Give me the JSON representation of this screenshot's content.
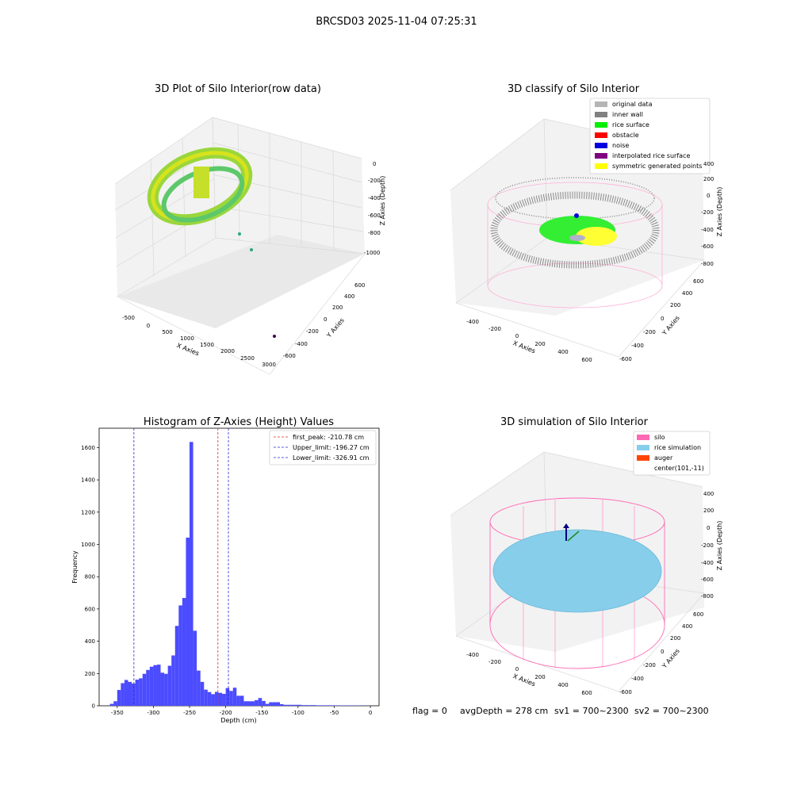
{
  "figure": {
    "suptitle": "BRCSD03 2025-11-04 07:25:31"
  },
  "status_line": {
    "flag": "flag = 0",
    "avg_depth": "avgDepth = 278 cm",
    "sv1": "sv1 = 700~2300",
    "sv2": "sv2 = 700~2300"
  },
  "colors": {
    "hist_bar": "#4b4bff",
    "first_peak": "#e03020",
    "limits": "#2a2ad0",
    "original_data": "#b5b5b5",
    "inner_wall": "#808080",
    "rice_surface": "#00f000",
    "obstacle": "#ff0000",
    "noise": "#0000e0",
    "interpolated_rice_surface": "#800080",
    "symmetric_generated_points": "#ffff00",
    "silo": "#ff69b4",
    "rice_simulation": "#87ceeb",
    "auger": "#ff4500"
  },
  "chart_data": [
    {
      "type": "scatter3d",
      "title": "3D Plot of Silo Interior(row data)",
      "xlabel": "X Axies",
      "ylabel": "Y Axies",
      "zlabel": "Z Axies (Depth)",
      "x_ticks": [
        "-500",
        "0",
        "500",
        "1000",
        "1500",
        "2000",
        "2500",
        "3000"
      ],
      "y_ticks": [
        "-600",
        "-400",
        "-200",
        "0",
        "200",
        "400",
        "600"
      ],
      "z_ticks": [
        "0",
        "-200",
        "-400",
        "-600",
        "-800",
        "-1000"
      ]
    },
    {
      "type": "scatter3d",
      "title": "3D classify of Silo Interior",
      "xlabel": "X Axies",
      "ylabel": "Y Axies",
      "zlabel": "Z Axies (Depth)",
      "x_ticks": [
        "-400",
        "-200",
        "0",
        "200",
        "400",
        "600"
      ],
      "y_ticks": [
        "-600",
        "-400",
        "-200",
        "0",
        "200",
        "400",
        "600"
      ],
      "z_ticks": [
        "200",
        "0",
        "-200",
        "-400",
        "-600",
        "-800"
      ],
      "z_top_tick": "400",
      "legend": [
        "original data",
        "inner wall",
        "rice surface",
        "obstacle",
        "noise",
        "interpolated rice surface",
        "symmetric generated points"
      ],
      "legend_position": "top-right"
    },
    {
      "type": "histogram",
      "title": "Histogram of Z-Axies (Height) Values",
      "xlabel": "Depth (cm)",
      "ylabel": "Frequency",
      "xlim": [
        -375,
        12
      ],
      "ylim": [
        0,
        1720
      ],
      "x_ticks": [
        -350,
        -300,
        -250,
        -200,
        -150,
        -100,
        -50,
        0
      ],
      "y_ticks": [
        0,
        200,
        400,
        600,
        800,
        1000,
        1200,
        1400,
        1600
      ],
      "bins": [
        [
          -360,
          -355,
          12
        ],
        [
          -355,
          -350,
          28
        ],
        [
          -350,
          -345,
          98
        ],
        [
          -345,
          -340,
          140
        ],
        [
          -340,
          -335,
          160
        ],
        [
          -335,
          -330,
          148
        ],
        [
          -330,
          -325,
          138
        ],
        [
          -325,
          -320,
          162
        ],
        [
          -320,
          -315,
          170
        ],
        [
          -315,
          -310,
          198
        ],
        [
          -310,
          -305,
          222
        ],
        [
          -305,
          -300,
          242
        ],
        [
          -300,
          -295,
          252
        ],
        [
          -295,
          -290,
          255
        ],
        [
          -290,
          -285,
          205
        ],
        [
          -285,
          -280,
          198
        ],
        [
          -280,
          -275,
          248
        ],
        [
          -275,
          -270,
          312
        ],
        [
          -270,
          -265,
          495
        ],
        [
          -265,
          -260,
          622
        ],
        [
          -260,
          -255,
          668
        ],
        [
          -255,
          -250,
          1042
        ],
        [
          -250,
          -245,
          1635
        ],
        [
          -245,
          -240,
          465
        ],
        [
          -240,
          -235,
          218
        ],
        [
          -235,
          -230,
          148
        ],
        [
          -230,
          -225,
          100
        ],
        [
          -225,
          -220,
          85
        ],
        [
          -220,
          -215,
          72
        ],
        [
          -215,
          -210,
          86
        ],
        [
          -210,
          -205,
          80
        ],
        [
          -205,
          -200,
          74
        ],
        [
          -200,
          -195,
          110
        ],
        [
          -195,
          -190,
          92
        ],
        [
          -190,
          -185,
          112
        ],
        [
          -185,
          -180,
          62
        ],
        [
          -180,
          -175,
          62
        ],
        [
          -175,
          -170,
          28
        ],
        [
          -170,
          -165,
          28
        ],
        [
          -165,
          -160,
          28
        ],
        [
          -160,
          -155,
          35
        ],
        [
          -155,
          -150,
          48
        ],
        [
          -150,
          -145,
          30
        ],
        [
          -145,
          -140,
          12
        ],
        [
          -140,
          -135,
          22
        ],
        [
          -135,
          -130,
          22
        ],
        [
          -130,
          -125,
          22
        ],
        [
          -125,
          -120,
          10
        ],
        [
          -120,
          -115,
          6
        ],
        [
          -115,
          -110,
          6
        ],
        [
          -110,
          -105,
          6
        ],
        [
          -105,
          -100,
          6
        ],
        [
          -100,
          -95,
          6
        ],
        [
          -95,
          -90,
          4
        ],
        [
          -90,
          -85,
          4
        ],
        [
          -85,
          -80,
          4
        ],
        [
          -80,
          -75,
          4
        ],
        [
          -75,
          -70,
          3
        ],
        [
          -70,
          -65,
          3
        ],
        [
          -65,
          -60,
          3
        ],
        [
          -60,
          -55,
          3
        ],
        [
          -55,
          -50,
          3
        ],
        [
          -50,
          -45,
          2
        ],
        [
          -45,
          -40,
          2
        ],
        [
          -40,
          -35,
          2
        ],
        [
          -35,
          -30,
          2
        ],
        [
          -30,
          -25,
          2
        ],
        [
          -25,
          -20,
          2
        ],
        [
          -20,
          -15,
          2
        ],
        [
          -15,
          -10,
          1
        ],
        [
          -10,
          -5,
          1
        ],
        [
          -5,
          0,
          1
        ]
      ],
      "vlines": [
        {
          "label": "first_peak: -210.78 cm",
          "x": -210.78,
          "color": "#e03020"
        },
        {
          "label": "Upper_limit: -196.27 cm",
          "x": -196.27,
          "color": "#2a2ad0"
        },
        {
          "label": "Lower_limit: -326.91 cm",
          "x": -326.91,
          "color": "#2a2ad0"
        }
      ],
      "legend_position": "top-right"
    },
    {
      "type": "surface3d",
      "title": "3D simulation of Silo Interior",
      "xlabel": "X Axies",
      "ylabel": "Y Axies",
      "zlabel": "Z Axies (Depth)",
      "x_ticks": [
        "-400",
        "-200",
        "0",
        "200",
        "400",
        "600"
      ],
      "y_ticks": [
        "-600",
        "-400",
        "-200",
        "0",
        "200",
        "400",
        "600"
      ],
      "z_ticks": [
        "400",
        "200",
        "0",
        "-200",
        "-400",
        "-600",
        "-800"
      ],
      "legend": [
        "silo",
        "rice simulation",
        "auger",
        "center(101,-11)"
      ],
      "legend_position": "top-right"
    }
  ]
}
